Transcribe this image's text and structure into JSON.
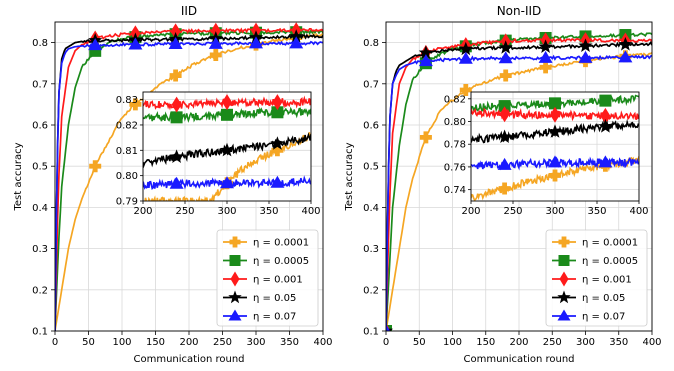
{
  "chart_data": [
    {
      "type": "line",
      "title": "IID",
      "xlabel": "Communication round",
      "ylabel": "Test accuracy",
      "xlim": [
        0,
        400
      ],
      "ylim": [
        0.1,
        0.85
      ],
      "xticks": [
        "0",
        "50",
        "100",
        "150",
        "200",
        "250",
        "300",
        "350",
        "400"
      ],
      "yticks": [
        "0.1",
        "0.2",
        "0.3",
        "0.4",
        "0.5",
        "0.6",
        "0.7",
        "0.8"
      ],
      "grid": true,
      "legend_position": "lower-right",
      "series": [
        {
          "name": "η = 0.0001",
          "color": "#f5a623",
          "marker": "plus",
          "x": [
            0,
            10,
            20,
            30,
            40,
            60,
            80,
            100,
            120,
            150,
            180,
            210,
            240,
            270,
            300,
            330,
            360,
            400
          ],
          "y": [
            0.1,
            0.2,
            0.3,
            0.37,
            0.42,
            0.5,
            0.56,
            0.62,
            0.65,
            0.69,
            0.72,
            0.75,
            0.77,
            0.785,
            0.795,
            0.805,
            0.812,
            0.82
          ]
        },
        {
          "name": "η = 0.0005",
          "color": "#1a8a1a",
          "marker": "square",
          "x": [
            0,
            5,
            10,
            20,
            30,
            40,
            60,
            80,
            100,
            150,
            200,
            250,
            300,
            350,
            400
          ],
          "y": [
            0.1,
            0.3,
            0.45,
            0.6,
            0.69,
            0.74,
            0.78,
            0.8,
            0.81,
            0.818,
            0.822,
            0.823,
            0.824,
            0.825,
            0.826
          ]
        },
        {
          "name": "η = 0.001",
          "color": "#ff1a1a",
          "marker": "diamond",
          "x": [
            0,
            5,
            10,
            20,
            30,
            40,
            60,
            80,
            100,
            150,
            200,
            250,
            300,
            350,
            400
          ],
          "y": [
            0.1,
            0.45,
            0.62,
            0.74,
            0.78,
            0.795,
            0.81,
            0.815,
            0.82,
            0.826,
            0.828,
            0.829,
            0.829,
            0.83,
            0.83
          ]
        },
        {
          "name": "η = 0.05",
          "color": "#000000",
          "marker": "star",
          "x": [
            0,
            3,
            6,
            10,
            15,
            20,
            30,
            40,
            60,
            100,
            150,
            200,
            250,
            300,
            350,
            400
          ],
          "y": [
            0.1,
            0.5,
            0.68,
            0.76,
            0.785,
            0.79,
            0.8,
            0.803,
            0.805,
            0.806,
            0.807,
            0.808,
            0.81,
            0.812,
            0.814,
            0.816
          ]
        },
        {
          "name": "η = 0.07",
          "color": "#1a1aff",
          "marker": "triangle",
          "x": [
            0,
            3,
            6,
            10,
            15,
            20,
            30,
            40,
            60,
            100,
            150,
            200,
            250,
            300,
            350,
            400
          ],
          "y": [
            0.1,
            0.5,
            0.68,
            0.75,
            0.775,
            0.785,
            0.79,
            0.792,
            0.794,
            0.795,
            0.796,
            0.797,
            0.797,
            0.798,
            0.798,
            0.799
          ]
        }
      ],
      "inset": {
        "xlim": [
          200,
          400
        ],
        "ylim": [
          0.79,
          0.833
        ],
        "xticks": [
          "200",
          "250",
          "300",
          "350",
          "400"
        ],
        "yticks": [
          "0.79",
          "0.80",
          "0.81",
          "0.82",
          "0.83"
        ],
        "levels": [
          {
            "series": "η = 0.0001",
            "x": [
              280,
              300,
              320,
              340,
              360,
              380,
              400
            ],
            "y": [
              0.79,
              0.797,
              0.803,
              0.807,
              0.81,
              0.813,
              0.816
            ]
          },
          {
            "series": "η = 0.0005",
            "x": [
              200,
              250,
              300,
              350,
              400
            ],
            "y": [
              0.823,
              0.823,
              0.824,
              0.825,
              0.825
            ]
          },
          {
            "series": "η = 0.001",
            "x": [
              200,
              250,
              300,
              350,
              400
            ],
            "y": [
              0.828,
              0.828,
              0.829,
              0.829,
              0.829
            ]
          },
          {
            "series": "η = 0.05",
            "x": [
              200,
              250,
              300,
              350,
              400
            ],
            "y": [
              0.805,
              0.808,
              0.81,
              0.812,
              0.815
            ]
          },
          {
            "series": "η = 0.07",
            "x": [
              200,
              250,
              300,
              350,
              400
            ],
            "y": [
              0.796,
              0.797,
              0.797,
              0.797,
              0.798
            ]
          }
        ]
      }
    },
    {
      "type": "line",
      "title": "Non-IID",
      "xlabel": "Communication round",
      "ylabel": "Test accuracy",
      "xlim": [
        0,
        400
      ],
      "ylim": [
        0.1,
        0.85
      ],
      "xticks": [
        "0",
        "50",
        "100",
        "150",
        "200",
        "250",
        "300",
        "350",
        "400"
      ],
      "yticks": [
        "0.1",
        "0.2",
        "0.3",
        "0.4",
        "0.5",
        "0.6",
        "0.7",
        "0.8"
      ],
      "grid": true,
      "legend_position": "lower-right",
      "series": [
        {
          "name": "η = 0.0001",
          "color": "#f5a623",
          "marker": "plus",
          "x": [
            0,
            10,
            20,
            30,
            40,
            60,
            80,
            100,
            120,
            150,
            180,
            210,
            240,
            270,
            300,
            330,
            360,
            400
          ],
          "y": [
            0.1,
            0.2,
            0.3,
            0.4,
            0.47,
            0.57,
            0.63,
            0.66,
            0.685,
            0.705,
            0.72,
            0.73,
            0.74,
            0.748,
            0.755,
            0.762,
            0.767,
            0.772
          ]
        },
        {
          "name": "η = 0.0005",
          "color": "#1a8a1a",
          "marker": "square",
          "x": [
            0,
            5,
            10,
            20,
            30,
            40,
            60,
            80,
            100,
            150,
            200,
            250,
            300,
            350,
            400
          ],
          "y": [
            0.1,
            0.25,
            0.4,
            0.55,
            0.65,
            0.71,
            0.75,
            0.77,
            0.785,
            0.8,
            0.808,
            0.812,
            0.815,
            0.818,
            0.82
          ]
        },
        {
          "name": "η = 0.001",
          "color": "#ff1a1a",
          "marker": "diamond",
          "x": [
            0,
            5,
            10,
            20,
            30,
            40,
            60,
            80,
            100,
            150,
            200,
            250,
            300,
            350,
            400
          ],
          "y": [
            0.1,
            0.4,
            0.58,
            0.7,
            0.74,
            0.76,
            0.775,
            0.785,
            0.79,
            0.8,
            0.805,
            0.806,
            0.806,
            0.805,
            0.805
          ]
        },
        {
          "name": "η = 0.05",
          "color": "#000000",
          "marker": "star",
          "x": [
            0,
            3,
            6,
            10,
            15,
            20,
            30,
            40,
            60,
            100,
            150,
            200,
            250,
            300,
            350,
            400
          ],
          "y": [
            0.1,
            0.45,
            0.62,
            0.7,
            0.73,
            0.745,
            0.755,
            0.765,
            0.775,
            0.782,
            0.787,
            0.788,
            0.79,
            0.792,
            0.795,
            0.797
          ]
        },
        {
          "name": "η = 0.07",
          "color": "#1a1aff",
          "marker": "triangle",
          "x": [
            0,
            3,
            6,
            10,
            15,
            20,
            30,
            40,
            60,
            100,
            150,
            200,
            250,
            300,
            350,
            400
          ],
          "y": [
            0.1,
            0.45,
            0.62,
            0.7,
            0.72,
            0.735,
            0.745,
            0.75,
            0.755,
            0.76,
            0.762,
            0.762,
            0.763,
            0.763,
            0.764,
            0.765
          ]
        }
      ],
      "inset": {
        "xlim": [
          200,
          400
        ],
        "ylim": [
          0.73,
          0.826
        ],
        "xticks": [
          "200",
          "250",
          "300",
          "350",
          "400"
        ],
        "yticks": [
          "0.74",
          "0.76",
          "0.78",
          "0.80",
          "0.82"
        ],
        "levels": [
          {
            "series": "η = 0.0001",
            "x": [
              200,
              240,
              280,
              320,
              360,
              400
            ],
            "y": [
              0.733,
              0.741,
              0.749,
              0.756,
              0.761,
              0.766
            ]
          },
          {
            "series": "η = 0.0005",
            "x": [
              200,
              250,
              300,
              350,
              400
            ],
            "y": [
              0.812,
              0.814,
              0.816,
              0.818,
              0.82
            ]
          },
          {
            "series": "η = 0.001",
            "x": [
              200,
              250,
              300,
              350,
              400
            ],
            "y": [
              0.808,
              0.806,
              0.806,
              0.805,
              0.805
            ]
          },
          {
            "series": "η = 0.05",
            "x": [
              200,
              250,
              300,
              350,
              400
            ],
            "y": [
              0.784,
              0.787,
              0.791,
              0.795,
              0.798
            ]
          },
          {
            "series": "η = 0.07",
            "x": [
              200,
              250,
              300,
              350,
              400
            ],
            "y": [
              0.761,
              0.762,
              0.764,
              0.764,
              0.764
            ]
          }
        ]
      }
    }
  ]
}
